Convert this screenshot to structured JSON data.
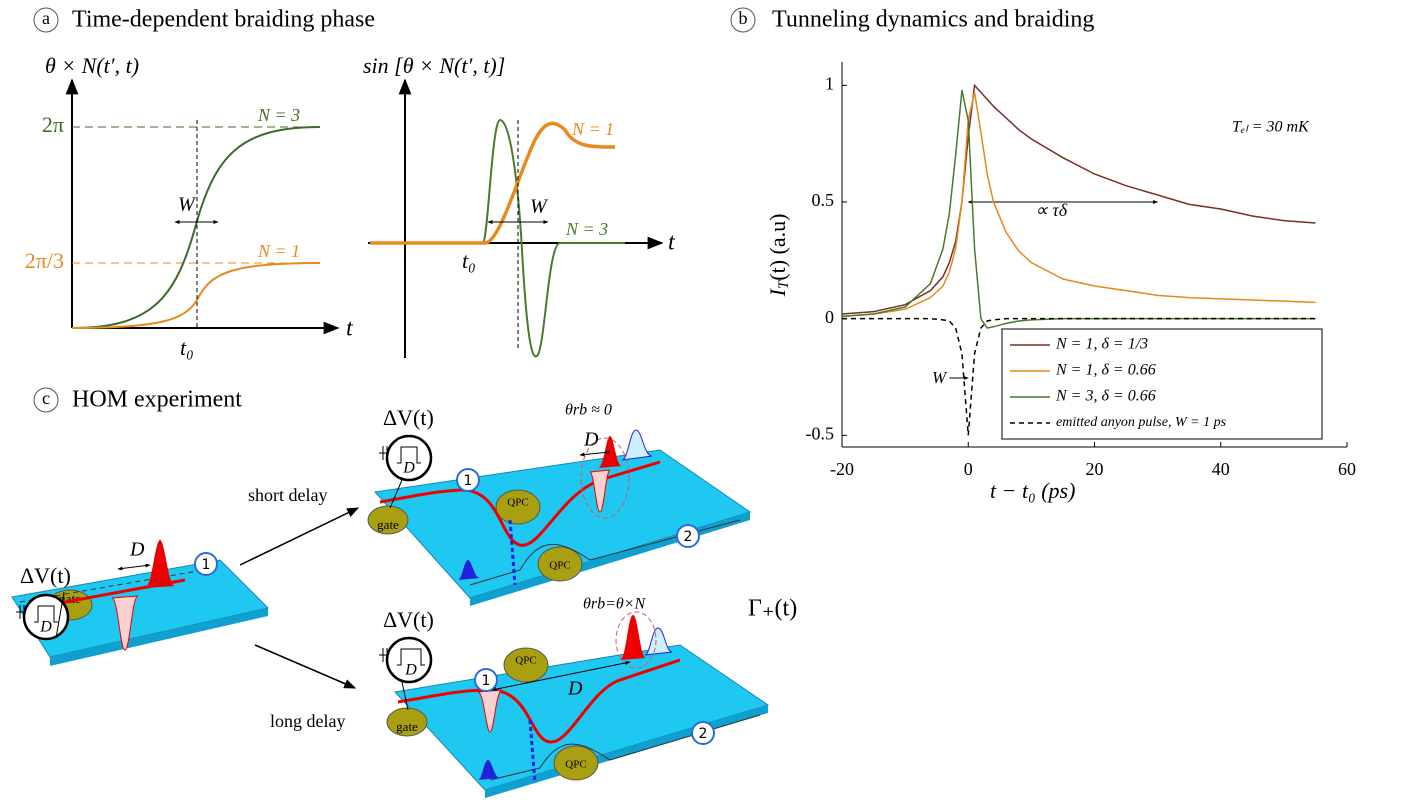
{
  "panel_a": {
    "label": "a",
    "title": "Time-dependent braiding phase",
    "left_ylabel": "θ × N(t′, t)",
    "right_ylabel": "sin [θ × N(t′, t)]",
    "ytick_high": "2π",
    "ytick_low": "2π/3",
    "left_n3": "N = 3",
    "left_n1": "N = 1",
    "right_n1": "N = 1",
    "right_n3": "N = 3",
    "width_left": "W",
    "width_right": "W",
    "t0_left": "t₀",
    "t0_right": "t₀",
    "xlabel_left": "t",
    "xlabel_right": "t"
  },
  "chart_data": {
    "type": "line",
    "label": "b",
    "title": "Tunneling dynamics and braiding",
    "xlabel": "t − t₀ (ps)",
    "ylabel": {
      "symbol": "I",
      "subscript": "T",
      "rest": "(t)  (a.u)"
    },
    "x": [
      -20,
      -15,
      -10,
      -6,
      -4,
      -3,
      -2,
      -1,
      0,
      1,
      2,
      3,
      4,
      6,
      8,
      10,
      15,
      20,
      25,
      30,
      35,
      40,
      45,
      50,
      55
    ],
    "series": [
      {
        "name": "N = 1, δ = 1/3",
        "color": "#7b2d26",
        "linestyle": "-",
        "values": [
          0.02,
          0.03,
          0.06,
          0.12,
          0.18,
          0.24,
          0.33,
          0.5,
          0.78,
          1.0,
          0.97,
          0.94,
          0.91,
          0.86,
          0.81,
          0.77,
          0.69,
          0.62,
          0.57,
          0.53,
          0.49,
          0.47,
          0.44,
          0.42,
          0.41
        ]
      },
      {
        "name": "N = 1, δ = 0.66",
        "color": "#e8891e",
        "linestyle": "-",
        "values": [
          0.01,
          0.02,
          0.04,
          0.09,
          0.14,
          0.2,
          0.3,
          0.5,
          0.85,
          0.97,
          0.8,
          0.62,
          0.5,
          0.37,
          0.29,
          0.24,
          0.17,
          0.14,
          0.12,
          0.1,
          0.09,
          0.085,
          0.08,
          0.075,
          0.07
        ]
      },
      {
        "name": "N = 3, δ = 0.66",
        "color": "#4a7a2e",
        "linestyle": "-",
        "values": [
          0.01,
          0.02,
          0.05,
          0.15,
          0.3,
          0.45,
          0.7,
          0.98,
          0.85,
          0.3,
          0.0,
          -0.04,
          -0.035,
          -0.02,
          -0.01,
          -0.005,
          0,
          0,
          0,
          0,
          0,
          0,
          0,
          0,
          0
        ]
      },
      {
        "name": "emitted anyon pulse, W = 1 ps",
        "color": "#000000",
        "linestyle": "--",
        "values": [
          0,
          0,
          0,
          0,
          -0.005,
          -0.01,
          -0.04,
          -0.15,
          -0.5,
          -0.15,
          -0.04,
          -0.01,
          -0.005,
          0,
          0,
          0,
          0,
          0,
          0,
          0,
          0,
          0,
          0,
          0,
          0
        ]
      }
    ],
    "xlim": [
      -20,
      60
    ],
    "xticks": [
      -20,
      0,
      20,
      40,
      60
    ],
    "ylim": [
      -0.55,
      1.1
    ],
    "yticks": [
      -0.5,
      0,
      0.5,
      1
    ],
    "legend": "lower right",
    "annotations": {
      "temperature": "Tₑₗ = 30 mK",
      "decay": "∝ τδ",
      "width": "W"
    }
  },
  "panel_c": {
    "label": "c",
    "title": "HOM experiment",
    "voltage_labels": [
      "ΔV(t)",
      "ΔV(t)",
      "ΔV(t)"
    ],
    "switch_labels": [
      "D",
      "D",
      "D"
    ],
    "delay_labels": [
      "D",
      "D",
      "D"
    ],
    "gate_labels": [
      "gate",
      "gate",
      "gate"
    ],
    "qpc_labels": [
      "QPC",
      "QPC",
      "QPC",
      "QPC"
    ],
    "port_labels": [
      "1",
      "1",
      "2",
      "1",
      "2"
    ],
    "short_delay": "short delay",
    "long_delay": "long delay",
    "theta_short": "θrb ≈ 0",
    "theta_long": "θrb=θ×N",
    "gamma": "Γ₊(t)"
  }
}
